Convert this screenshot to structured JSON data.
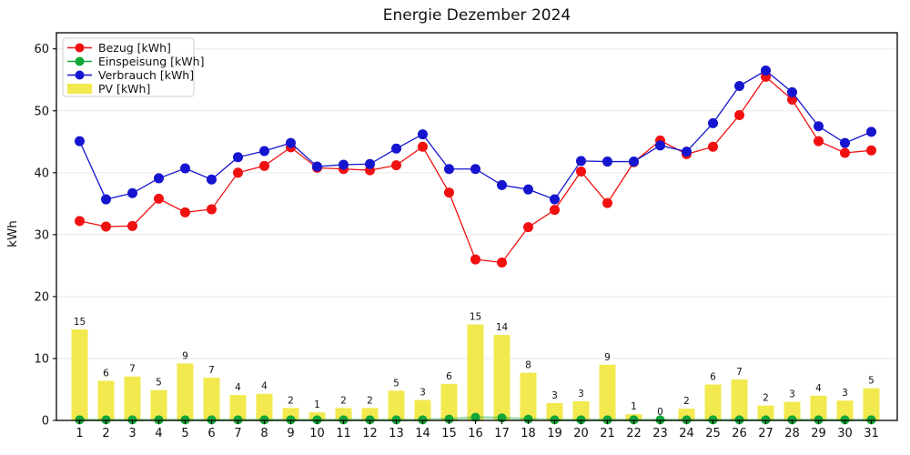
{
  "figure": {
    "title": "Energie Dezember 2024",
    "ylabel": "kWh",
    "background": "#ffffff"
  },
  "colors": {
    "bezug": "#f01010",
    "einspeisung": "#12a637",
    "verbrauch": "#1515cf",
    "pv": "#f2e94e",
    "grid": "#ebebeb",
    "spine": "#000000",
    "legend_border": "#cccccc"
  },
  "legend": {
    "position": "upper-left",
    "entries": [
      {
        "label": "Bezug [kWh]",
        "marker": "line-dot",
        "color": "#f01010"
      },
      {
        "label": "Einspeisung [kWh]",
        "marker": "line-dot",
        "color": "#12a637"
      },
      {
        "label": "Verbrauch [kWh]",
        "marker": "line-dot",
        "color": "#1515cf"
      },
      {
        "label": "PV [kWh]",
        "marker": "patch",
        "color": "#f2e94e"
      }
    ]
  },
  "chart_data": {
    "type": "bar+line",
    "title": "Energie Dezember 2024",
    "xlabel": "",
    "ylabel": "kWh",
    "categories": [
      1,
      2,
      3,
      4,
      5,
      6,
      7,
      8,
      9,
      10,
      11,
      12,
      13,
      14,
      15,
      16,
      17,
      18,
      19,
      20,
      21,
      22,
      23,
      24,
      25,
      26,
      27,
      28,
      29,
      30,
      31
    ],
    "yticks": [
      0,
      10,
      20,
      30,
      40,
      50,
      60
    ],
    "ylim": [
      0,
      62.6
    ],
    "grid": "horizontal",
    "legend_position": "upper-left",
    "series": [
      {
        "name": "Bezug [kWh]",
        "type": "line",
        "color": "#f01010",
        "values": [
          32.2,
          31.3,
          31.4,
          35.8,
          33.6,
          34.1,
          40.0,
          41.1,
          44.1,
          40.8,
          40.6,
          40.4,
          41.2,
          44.2,
          36.8,
          26.0,
          25.5,
          31.2,
          34.0,
          40.2,
          35.1,
          41.7,
          45.2,
          43.0,
          44.2,
          49.3,
          55.5,
          51.8,
          45.1,
          43.2,
          43.6
        ]
      },
      {
        "name": "Einspeisung [kWh]",
        "type": "line",
        "color": "#12a637",
        "values": [
          0.1,
          0.1,
          0.1,
          0.1,
          0.1,
          0.1,
          0.1,
          0.1,
          0.1,
          0.1,
          0.1,
          0.1,
          0.1,
          0.1,
          0.2,
          0.5,
          0.4,
          0.2,
          0.1,
          0.1,
          0.1,
          0.1,
          0.1,
          0.1,
          0.1,
          0.1,
          0.1,
          0.1,
          0.1,
          0.1,
          0.1
        ]
      },
      {
        "name": "Verbrauch [kWh]",
        "type": "line",
        "color": "#1515cf",
        "values": [
          45.1,
          35.7,
          36.7,
          39.1,
          40.7,
          38.9,
          42.5,
          43.5,
          44.8,
          41.0,
          41.3,
          41.4,
          43.9,
          46.2,
          40.6,
          40.6,
          38.0,
          37.3,
          35.7,
          41.9,
          41.8,
          41.8,
          44.4,
          43.4,
          48.0,
          54.0,
          56.5,
          53.0,
          47.5,
          44.8,
          46.6
        ]
      },
      {
        "name": "PV [kWh]",
        "type": "bar",
        "color": "#f2e94e",
        "values": [
          14.7,
          6.4,
          7.1,
          4.9,
          9.2,
          6.9,
          4.1,
          4.3,
          2.0,
          1.3,
          2.0,
          2.0,
          4.8,
          3.3,
          5.9,
          15.5,
          13.8,
          7.7,
          2.8,
          3.1,
          9.0,
          1.0,
          0.15,
          1.9,
          5.8,
          6.6,
          2.4,
          3.0,
          4.0,
          3.2,
          5.2
        ],
        "bar_labels": [
          "15",
          "6",
          "7",
          "5",
          "9",
          "7",
          "4",
          "4",
          "2",
          "1",
          "2",
          "2",
          "5",
          "3",
          "6",
          "15",
          "14",
          "8",
          "3",
          "3",
          "9",
          "1",
          "0",
          "2",
          "6",
          "7",
          "2",
          "3",
          "4",
          "3",
          "5"
        ]
      }
    ]
  }
}
